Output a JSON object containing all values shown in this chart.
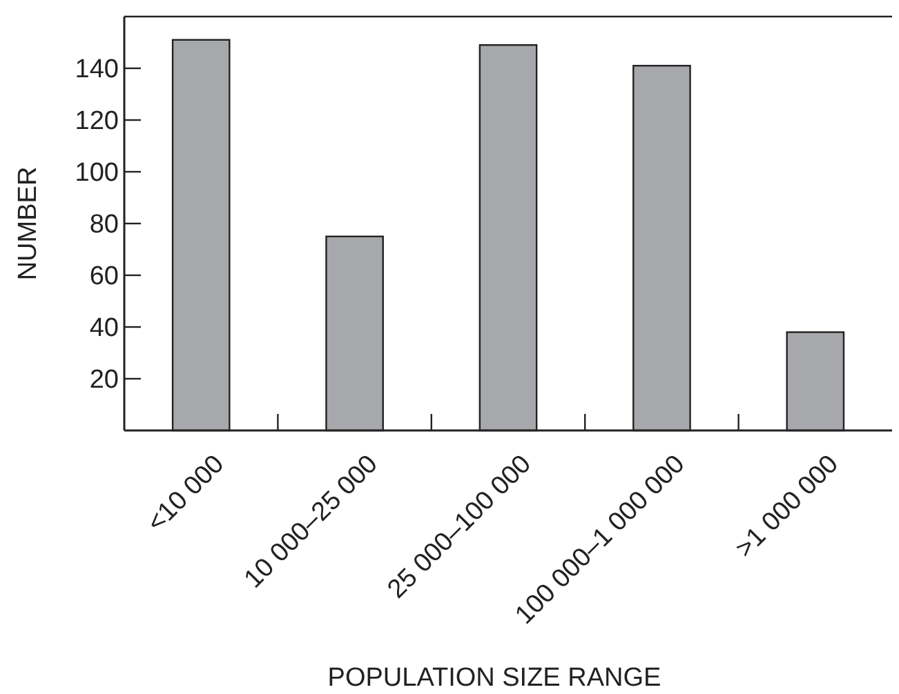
{
  "chart_data": {
    "type": "bar",
    "xlabel": "POPULATION SIZE RANGE",
    "ylabel": "NUMBER",
    "categories": [
      "<10 000",
      "10 000–25 000",
      "25 000–100 000",
      "100 000–1 000 000",
      ">1 000 000"
    ],
    "values": [
      151,
      75,
      149,
      141,
      38
    ],
    "color": "#a7a8ab",
    "ylim": [
      0,
      160
    ],
    "yticks": [
      20,
      40,
      60,
      80,
      100,
      120,
      140
    ],
    "grid": false
  }
}
